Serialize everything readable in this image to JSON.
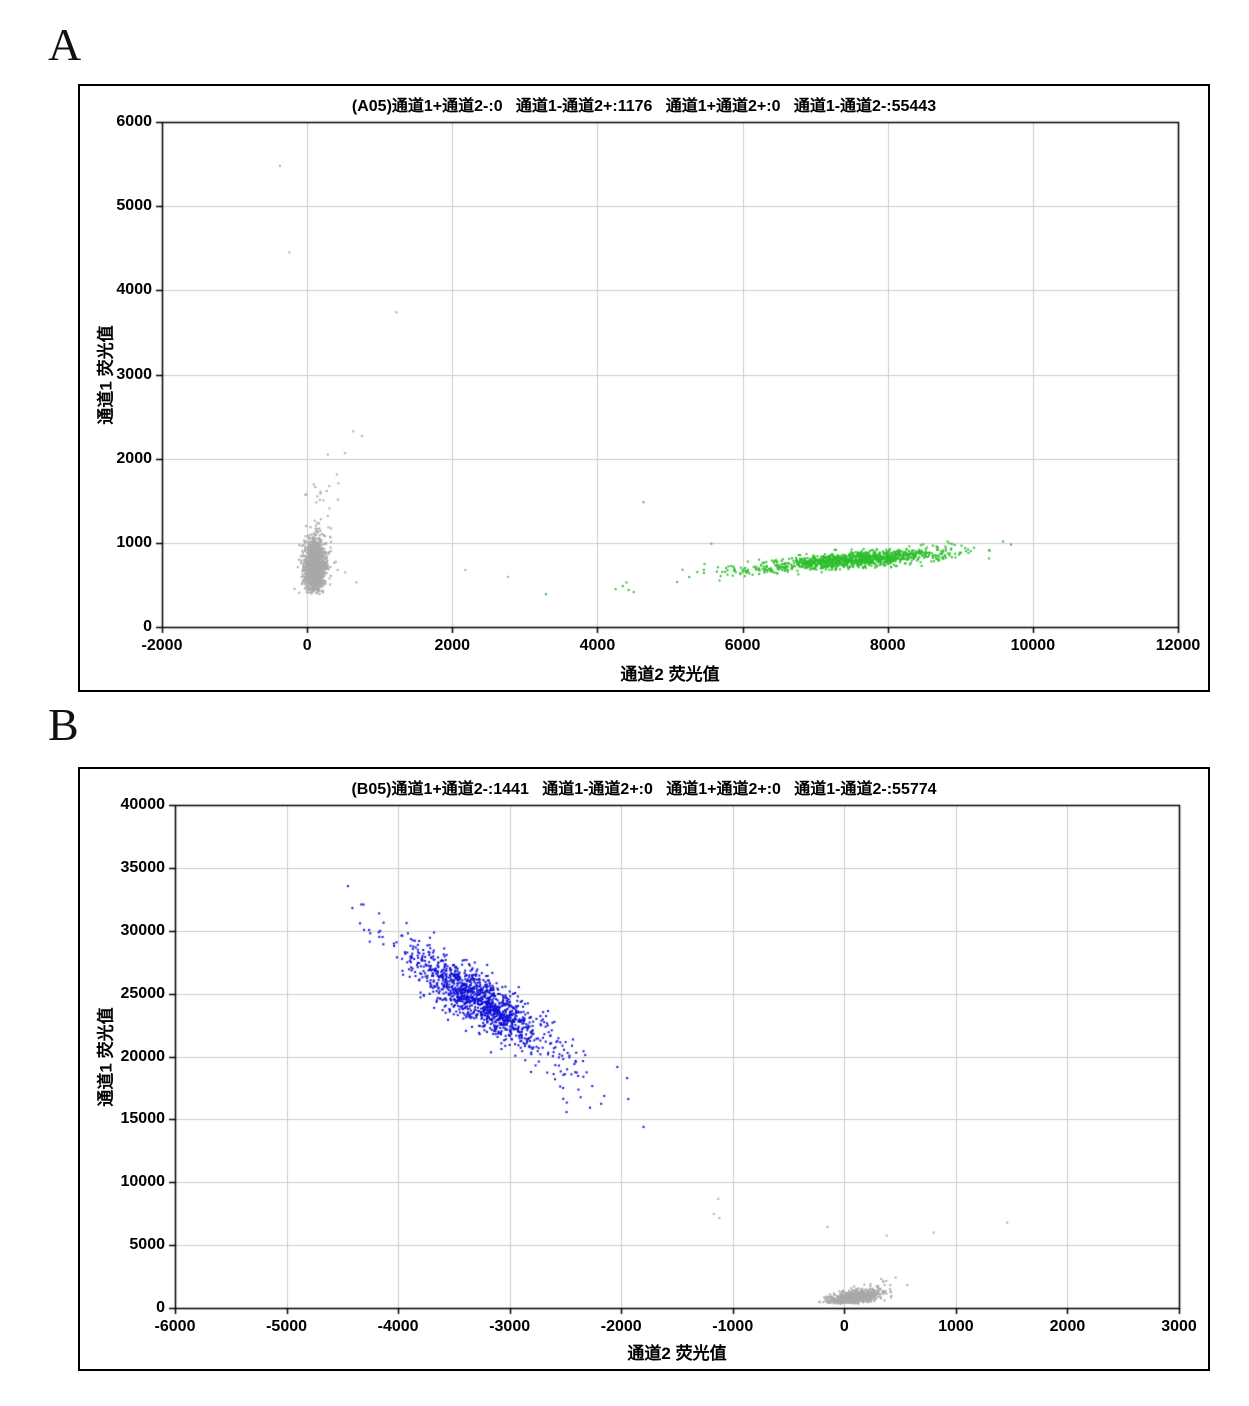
{
  "figure_labels": [
    {
      "text": "A"
    },
    {
      "text": "B"
    }
  ],
  "chart_data": [
    {
      "id": "A05",
      "type": "scatter",
      "panel_label": "A",
      "title": "(A05)通道1+通道2-:0   通道1-通道2+:1176   通道1+通道2+:0   通道1-通道2-:55443",
      "xlabel": "通道2 荧光值",
      "ylabel": "通道1 荧光值",
      "xlim": [
        -2000,
        12000
      ],
      "ylim": [
        0,
        6000
      ],
      "xticks": [
        -2000,
        0,
        2000,
        4000,
        6000,
        8000,
        10000,
        12000
      ],
      "yticks": [
        0,
        1000,
        2000,
        3000,
        4000,
        5000,
        6000
      ],
      "grid": true,
      "legend": "none",
      "stats": {
        "ch1pos_ch2neg": 0,
        "ch1neg_ch2pos": 1176,
        "ch1pos_ch2pos": 0,
        "ch1neg_ch2neg": 55443
      },
      "series": [
        {
          "name": "double-negative-droplets",
          "kind": "gaussian",
          "color": "#a9a9a9",
          "size": 2,
          "n": 1600,
          "cx": 110,
          "cy": 730,
          "sx": 72,
          "sy": 150,
          "rho": 0.05,
          "ymin": 390,
          "seed": 1
        },
        {
          "name": "double-negative-upper-tail",
          "kind": "gaussian",
          "color": "#a9a9a9",
          "size": 2,
          "n": 20,
          "cx": 240,
          "cy": 1430,
          "sx": 140,
          "sy": 260,
          "rho": 0.25,
          "seed": 2
        },
        {
          "name": "ch2-positive-droplets",
          "kind": "gaussian",
          "color": "#2dbe2d",
          "size": 2,
          "n": 1050,
          "cx": 7550,
          "cy": 800,
          "sx": 620,
          "sy": 62,
          "rho": 0.7,
          "seed": 3
        },
        {
          "name": "ch2-positive-left-tail",
          "kind": "gaussian",
          "color": "#2dbe2d",
          "size": 2,
          "n": 45,
          "cx": 5900,
          "cy": 668,
          "sx": 430,
          "sy": 55,
          "rho": 0.5,
          "seed": 4
        },
        {
          "name": "gray-stray-points",
          "kind": "points",
          "color": "#a9a9a9",
          "size": 2,
          "points": [
            [
              -375,
              5480
            ],
            [
              -245,
              4450
            ],
            [
              1230,
              3740
            ],
            [
              635,
              2325
            ],
            [
              755,
              2270
            ],
            [
              285,
              2050
            ],
            [
              520,
              2065
            ],
            [
              305,
              1673
            ],
            [
              175,
              1510
            ],
            [
              190,
              1280
            ],
            [
              285,
              1320
            ],
            [
              165,
              1230
            ],
            [
              320,
              1065
            ],
            [
              395,
              775
            ],
            [
              420,
              676
            ],
            [
              525,
              650
            ],
            [
              680,
              530
            ],
            [
              2180,
              676
            ],
            [
              2770,
              595
            ]
          ]
        },
        {
          "name": "green-stray-points",
          "kind": "points",
          "color": "#2dbe2d",
          "size": 2,
          "points": [
            [
              3290,
              390
            ],
            [
              4250,
              450
            ],
            [
              4350,
              486
            ],
            [
              4430,
              440
            ],
            [
              4500,
              415
            ],
            [
              4635,
              1483
            ],
            [
              5570,
              990
            ],
            [
              9590,
              1016
            ],
            [
              9700,
              980
            ]
          ]
        }
      ]
    },
    {
      "id": "B05",
      "type": "scatter",
      "panel_label": "B",
      "title": "(B05)通道1+通道2-:1441   通道1-通道2+:0   通道1+通道2+:0   通道1-通道2-:55774",
      "xlabel": "通道2 荧光值",
      "ylabel": "通道1 荧光值",
      "xlim": [
        -6000,
        3000
      ],
      "ylim": [
        0,
        40000
      ],
      "xticks": [
        -6000,
        -5000,
        -4000,
        -3000,
        -2000,
        -1000,
        0,
        1000,
        2000,
        3000
      ],
      "yticks": [
        0,
        5000,
        10000,
        15000,
        20000,
        25000,
        30000,
        35000,
        40000
      ],
      "grid": true,
      "legend": "none",
      "stats": {
        "ch1pos_ch2neg": 1441,
        "ch1neg_ch2pos": 0,
        "ch1pos_ch2pos": 0,
        "ch1neg_ch2neg": 55774
      },
      "series": [
        {
          "name": "ch1-positive-droplets",
          "kind": "gaussian",
          "color": "#0f0fd8",
          "size": 2,
          "n": 1150,
          "cx": -3270,
          "cy": 24500,
          "sx": 310,
          "sy": 1950,
          "rho": -0.84,
          "seed": 5
        },
        {
          "name": "ch1-positive-halo",
          "kind": "gaussian",
          "color": "#0f0fd8",
          "size": 2,
          "n": 70,
          "cx": -3250,
          "cy": 24300,
          "sx": 560,
          "sy": 3300,
          "rho": -0.88,
          "seed": 6
        },
        {
          "name": "ch1-positive-lower-tail",
          "kind": "gaussian",
          "color": "#0f0fd8",
          "size": 2,
          "n": 16,
          "cx": -2480,
          "cy": 18200,
          "sx": 230,
          "sy": 1200,
          "rho": -0.65,
          "seed": 7
        },
        {
          "name": "double-negative-droplets",
          "kind": "gaussian",
          "color": "#a9a9a9",
          "size": 2,
          "n": 750,
          "cx": 90,
          "cy": 820,
          "sx": 115,
          "sy": 290,
          "rho": 0.45,
          "ymin": 340,
          "seed": 8
        },
        {
          "name": "double-negative-tail",
          "kind": "gaussian",
          "color": "#a9a9a9",
          "size": 2,
          "n": 14,
          "cx": 330,
          "cy": 1900,
          "sx": 140,
          "sy": 380,
          "rho": 0.4,
          "seed": 9
        },
        {
          "name": "blue-stray-points",
          "kind": "points",
          "color": "#0f0fd8",
          "size": 2,
          "points": [
            [
              -4450,
              33550
            ],
            [
              -4410,
              31800
            ],
            [
              -4330,
              32090
            ],
            [
              -4170,
              31380
            ],
            [
              -4130,
              30640
            ],
            [
              -4260,
              30060
            ],
            [
              -2520,
              19790
            ],
            [
              -2420,
              19400
            ],
            [
              -2310,
              18740
            ],
            [
              -2180,
              16240
            ],
            [
              -2520,
              16630
            ],
            [
              -2490,
              15580
            ],
            [
              -2280,
              15930
            ],
            [
              -1800,
              14400
            ]
          ]
        },
        {
          "name": "gray-stray-points",
          "kind": "points",
          "color": "#a9a9a9",
          "size": 2,
          "points": [
            [
              -1130,
              8680
            ],
            [
              -1170,
              7470
            ],
            [
              -1120,
              7160
            ],
            [
              -150,
              6450
            ],
            [
              380,
              5760
            ],
            [
              800,
              6000
            ],
            [
              1460,
              6790
            ],
            [
              350,
              2130
            ],
            [
              565,
              1820
            ]
          ]
        }
      ]
    }
  ],
  "colors": {
    "gray_points": "#a9a9a9",
    "green_points": "#2dbe2d",
    "blue_points": "#0f0fd8",
    "gridline": "#cccccc",
    "frame": "#000000",
    "background": "#ffffff"
  }
}
